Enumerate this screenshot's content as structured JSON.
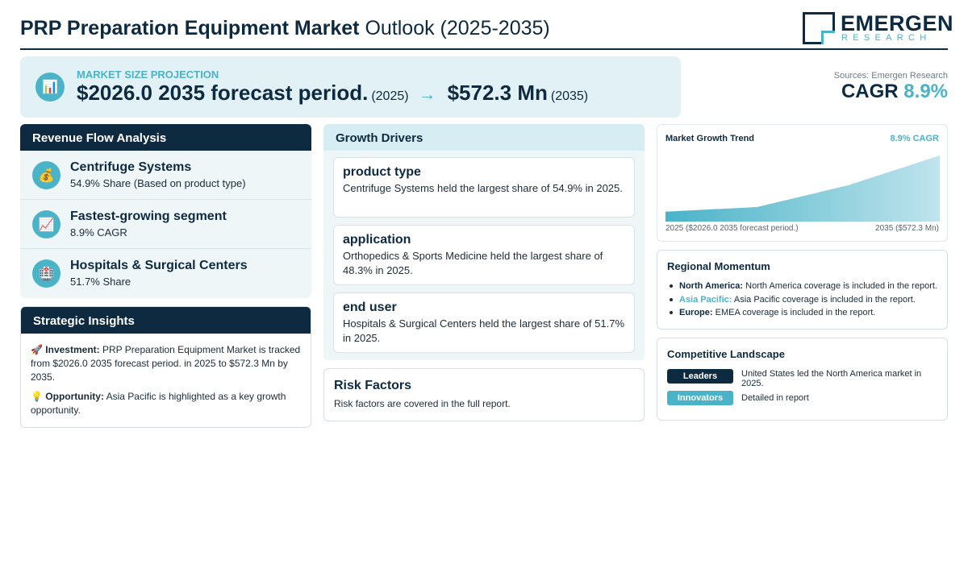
{
  "header": {
    "title_bold": "PRP Preparation Equipment Market",
    "title_light": "Outlook (2025-2035)",
    "logo_top": "EMERGEN",
    "logo_bottom": "RESEARCH"
  },
  "projection": {
    "icon": "bar-chart-icon",
    "label": "MARKET SIZE PROJECTION",
    "start_value": "$2026.0 2035 forecast period.",
    "start_year": "(2025)",
    "arrow": "→",
    "end_value": "$572.3 Mn",
    "end_year": "(2035)"
  },
  "sources": "Sources: Emergen Research",
  "cagr": {
    "label": "CAGR",
    "value": "8.9%"
  },
  "revenue": {
    "title": "Revenue Flow Analysis",
    "items": [
      {
        "icon": "money-bag-icon",
        "title": "Centrifuge Systems",
        "sub": "54.9% Share (Based on product type)"
      },
      {
        "icon": "chart-up-icon",
        "title": "Fastest-growing segment",
        "sub": "8.9% CAGR"
      },
      {
        "icon": "hospital-icon",
        "title": "Hospitals & Surgical Centers",
        "sub": "51.7% Share"
      }
    ]
  },
  "strategic": {
    "title": "Strategic Insights",
    "investment_label": "Investment:",
    "investment_text": "PRP Preparation Equipment Market is tracked from $2026.0 2035 forecast period. in 2025 to $572.3 Mn by 2035.",
    "opportunity_label": "Opportunity:",
    "opportunity_text": "Asia Pacific is highlighted as a key growth opportunity."
  },
  "drivers": {
    "title": "Growth Drivers",
    "cards": [
      {
        "title": "product type",
        "text": "Centrifuge Systems held the largest share of 54.9% in 2025."
      },
      {
        "title": "application",
        "text": "Orthopedics & Sports Medicine held the largest share of 48.3% in 2025."
      },
      {
        "title": "end user",
        "text": "Hospitals & Surgical Centers held the largest share of 51.7% in 2025."
      }
    ]
  },
  "risk": {
    "title": "Risk Factors",
    "text": "Risk factors are covered in the full report."
  },
  "trend": {
    "title": "Market Growth Trend",
    "cagr": "8.9% CAGR",
    "left_label": "2025 ($2026.0 2035 forecast period.)",
    "right_label": "2035 ($572.3 Mn)",
    "fill_color": "#4ab3c8"
  },
  "chart_data": {
    "type": "area",
    "title": "Market Growth Trend",
    "series": [
      {
        "values": [
          0.15,
          0.22,
          0.55,
          1.0
        ]
      }
    ],
    "grid": false
  },
  "regional": {
    "title": "Regional Momentum",
    "items": [
      {
        "region": "North America:",
        "text": "North America coverage is included in the report."
      },
      {
        "region": "Asia Pacific:",
        "text": "Asia Pacific coverage is included in the report."
      },
      {
        "region": "Europe:",
        "text": "EMEA coverage is included in the report."
      }
    ]
  },
  "competitive": {
    "title": "Competitive Landscape",
    "leaders_label": "Leaders",
    "leaders_text": "United States led the North America market in 2025.",
    "innovators_label": "Innovators",
    "innovators_text": "Detailed in report"
  },
  "colors": {
    "navy": "#0e2a40",
    "teal": "#4ab3c8",
    "panel": "#eef6f8"
  }
}
